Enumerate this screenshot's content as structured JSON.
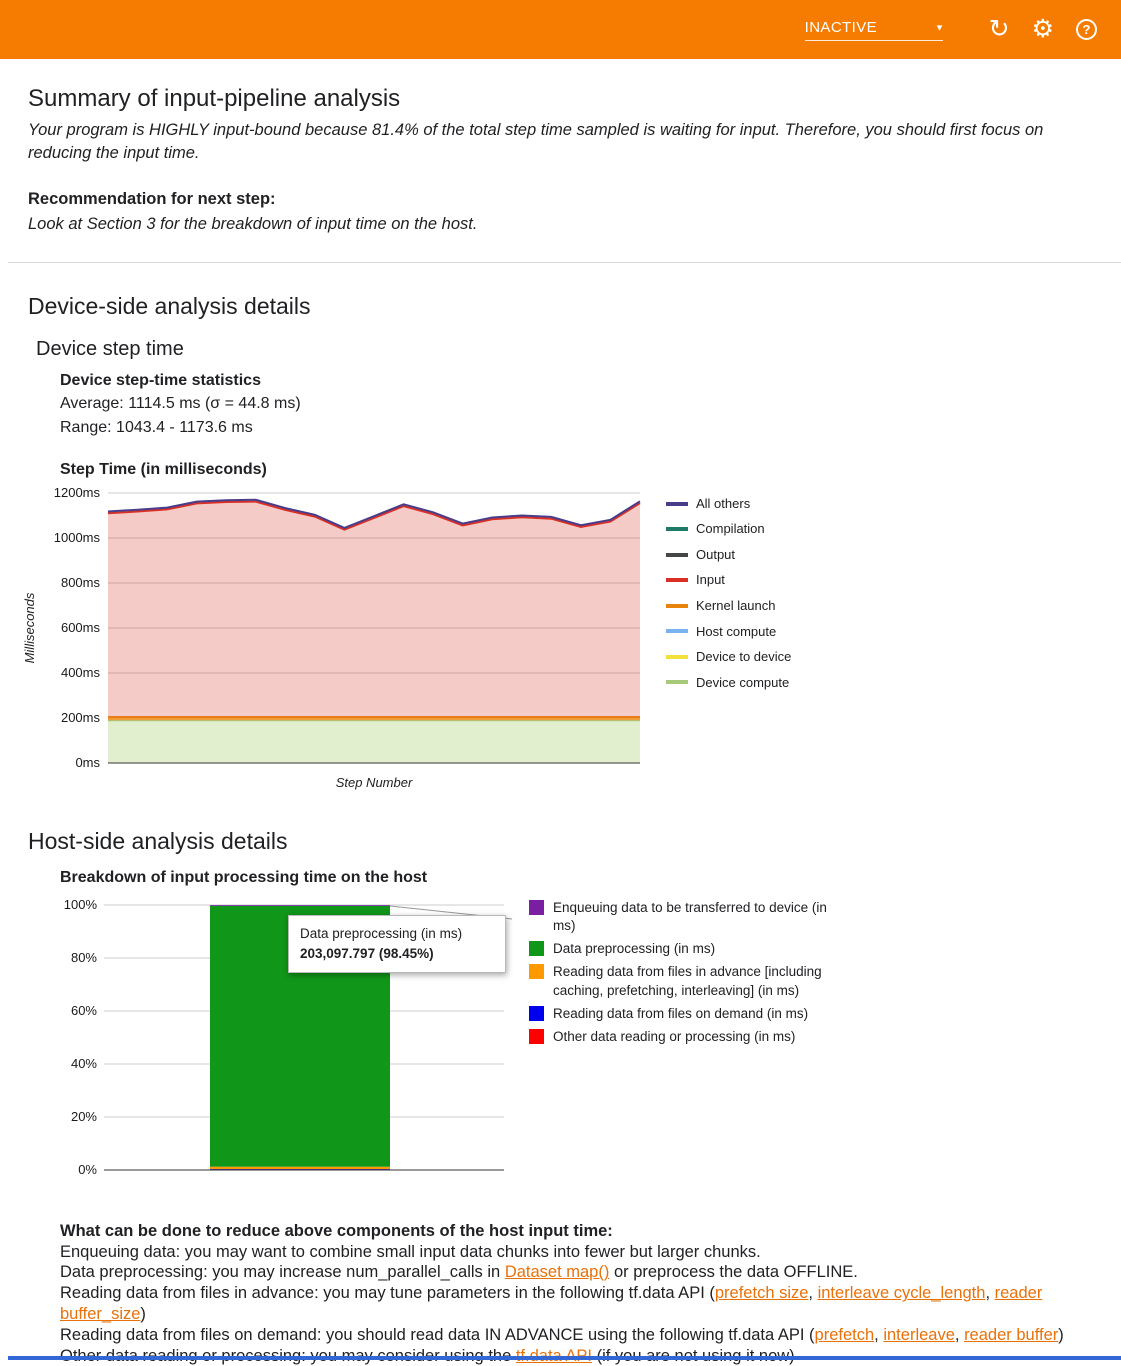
{
  "header": {
    "run_status": "INACTIVE"
  },
  "summary": {
    "title": "Summary of input-pipeline analysis",
    "body": "Your program is HIGHLY input-bound because 81.4% of the total step time sampled is waiting for input. Therefore, you should first focus on reducing the input time.",
    "recommendation_label": "Recommendation for next step:",
    "recommendation": "Look at Section 3 for the breakdown of input time on the host."
  },
  "device": {
    "title": "Device-side analysis details",
    "subtitle": "Device step time",
    "stats_title": "Device step-time statistics",
    "average": "Average: 1114.5 ms (σ = 44.8 ms)",
    "range": "Range: 1043.4 - 1173.6 ms"
  },
  "host": {
    "title": "Host-side analysis details"
  },
  "tips": {
    "heading": "What can be done to reduce above components of the host input time:",
    "lines": [
      [
        {
          "t": "Enqueuing data: you may want to combine small input data chunks into fewer but larger chunks."
        }
      ],
      [
        {
          "t": "Data preprocessing: you may increase num_parallel_calls in "
        },
        {
          "t": "Dataset map()",
          "link": true
        },
        {
          "t": " or preprocess the data OFFLINE."
        }
      ],
      [
        {
          "t": "Reading data from files in advance: you may tune parameters in the following tf.data API ("
        },
        {
          "t": "prefetch size",
          "link": true
        },
        {
          "t": ", "
        },
        {
          "t": "interleave cycle_length",
          "link": true
        },
        {
          "t": ", "
        },
        {
          "t": "reader buffer_size",
          "link": true
        },
        {
          "t": ")"
        }
      ],
      [
        {
          "t": "Reading data from files on demand: you should read data IN ADVANCE using the following tf.data API ("
        },
        {
          "t": "prefetch",
          "link": true
        },
        {
          "t": ", "
        },
        {
          "t": "interleave",
          "link": true
        },
        {
          "t": ", "
        },
        {
          "t": "reader buffer",
          "link": true
        },
        {
          "t": ")"
        }
      ],
      [
        {
          "t": "Other data reading or processing: you may consider using the "
        },
        {
          "t": "tf.data API",
          "link": true
        },
        {
          "t": " (if you are not using it now)"
        }
      ]
    ]
  },
  "chart_data": [
    {
      "type": "area",
      "title": "Step Time (in milliseconds)",
      "xlabel": "Step Number",
      "ylabel": "Milliseconds",
      "ylim": [
        0,
        1200
      ],
      "yticks": [
        {
          "v": 0,
          "label": "0ms"
        },
        {
          "v": 200,
          "label": "200ms"
        },
        {
          "v": 400,
          "label": "400ms"
        },
        {
          "v": 600,
          "label": "600ms"
        },
        {
          "v": 800,
          "label": "800ms"
        },
        {
          "v": 1000,
          "label": "1000ms"
        },
        {
          "v": 1200,
          "label": "1200ms"
        }
      ],
      "x": [
        1,
        2,
        3,
        4,
        5,
        6,
        7,
        8,
        9,
        10,
        11,
        12,
        13,
        14,
        15,
        16,
        17,
        18,
        19
      ],
      "series": [
        {
          "name": "Device compute",
          "color": "#a8c97a",
          "fill": "rgba(190,219,148,0.45)",
          "values": [
            190,
            190,
            190,
            190,
            190,
            190,
            190,
            190,
            190,
            190,
            190,
            190,
            190,
            190,
            190,
            190,
            190,
            190,
            190
          ]
        },
        {
          "name": "Device to device",
          "color": "#f0e13c",
          "values": [
            0,
            0,
            0,
            0,
            0,
            0,
            0,
            0,
            0,
            0,
            0,
            0,
            0,
            0,
            0,
            0,
            0,
            0,
            0
          ]
        },
        {
          "name": "Host compute",
          "color": "#7ab3ef",
          "values": [
            0,
            0,
            0,
            0,
            0,
            0,
            0,
            0,
            0,
            0,
            0,
            0,
            0,
            0,
            0,
            0,
            0,
            0,
            0
          ]
        },
        {
          "name": "Kernel launch",
          "color": "#e8830c",
          "fill": "#f09d3c",
          "values": [
            14,
            14,
            14,
            14,
            14,
            14,
            14,
            14,
            14,
            14,
            14,
            14,
            14,
            14,
            14,
            14,
            14,
            14,
            14
          ]
        },
        {
          "name": "Input",
          "color": "#d93025",
          "fill": "rgba(217,48,37,0.25)",
          "values": [
            906,
            914,
            923,
            950,
            956,
            958,
            921,
            891,
            833,
            885,
            938,
            902,
            852,
            879,
            888,
            882,
            845,
            869,
            951
          ]
        },
        {
          "name": "Output",
          "color": "#444746",
          "values": [
            0,
            0,
            0,
            0,
            0,
            0,
            0,
            0,
            0,
            0,
            0,
            0,
            0,
            0,
            0,
            0,
            0,
            0,
            0
          ]
        },
        {
          "name": "Compilation",
          "color": "#1d7a68",
          "values": [
            0,
            0,
            0,
            0,
            0,
            0,
            0,
            0,
            0,
            0,
            0,
            0,
            0,
            0,
            0,
            0,
            0,
            0,
            0
          ]
        },
        {
          "name": "All others",
          "color": "#483d8b",
          "values": [
            8,
            8,
            8,
            8,
            8,
            8,
            8,
            8,
            8,
            8,
            8,
            8,
            8,
            8,
            8,
            8,
            8,
            8,
            8
          ]
        }
      ]
    },
    {
      "type": "bar",
      "title": "Breakdown of input processing time on the host",
      "yticks": [
        {
          "v": 0,
          "label": "0%"
        },
        {
          "v": 20,
          "label": "20%"
        },
        {
          "v": 40,
          "label": "40%"
        },
        {
          "v": 60,
          "label": "60%"
        },
        {
          "v": 80,
          "label": "80%"
        },
        {
          "v": 100,
          "label": "100%"
        }
      ],
      "segments": [
        {
          "name": "Other data reading or processing (in ms)",
          "color": "#ff0000",
          "pct": 0.2
        },
        {
          "name": "Reading data from files on demand (in ms)",
          "color": "#0000ee",
          "pct": 0.15
        },
        {
          "name": "Reading data from files in advance [including caching, prefetching, interleaving] (in ms)",
          "color": "#ff9900",
          "pct": 0.9
        },
        {
          "name": "Data preprocessing (in ms)",
          "color": "#109618",
          "pct": 98.45
        },
        {
          "name": "Enqueuing data to be transferred to device (in ms)",
          "color": "#7b1fa2",
          "pct": 0.3
        }
      ],
      "tooltip": {
        "label": "Data preprocessing (in ms)",
        "value": "203,097.797 (98.45%)"
      }
    }
  ]
}
